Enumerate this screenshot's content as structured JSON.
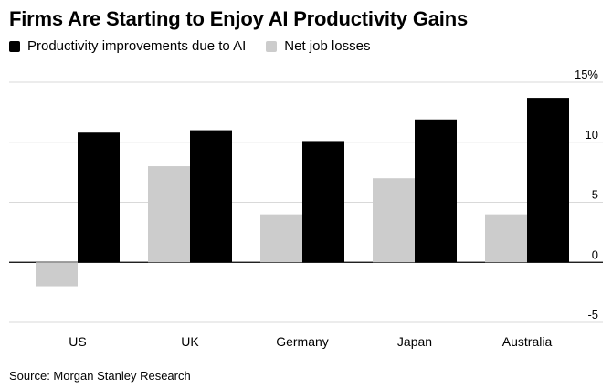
{
  "title": "Firms Are Starting to Enjoy AI Productivity Gains",
  "source": "Source: Morgan Stanley Research",
  "colors": {
    "productivity": "#000000",
    "job_losses": "#cccccc",
    "grid": "#d9d9d9",
    "axis": "#000000"
  },
  "legend": [
    {
      "label": "Productivity improvements due to AI",
      "color": "#000000"
    },
    {
      "label": "Net job losses",
      "color": "#cccccc"
    }
  ],
  "chart_data": {
    "type": "bar",
    "title": "Firms Are Starting to Enjoy AI Productivity Gains",
    "categories": [
      "US",
      "UK",
      "Germany",
      "Japan",
      "Australia"
    ],
    "series": [
      {
        "name": "Net job losses",
        "values": [
          -2,
          8,
          4,
          7,
          4
        ]
      },
      {
        "name": "Productivity improvements due to AI",
        "values": [
          10.8,
          11,
          10.1,
          11.9,
          13.7
        ]
      }
    ],
    "ylim": [
      -5,
      15
    ],
    "yticks": [
      -5,
      0,
      5,
      10,
      15
    ],
    "ytick_labels": [
      "-5",
      "0",
      "5",
      "10",
      "15%"
    ],
    "y_axis_side": "right",
    "grid": true,
    "legend_position": "top-left"
  }
}
